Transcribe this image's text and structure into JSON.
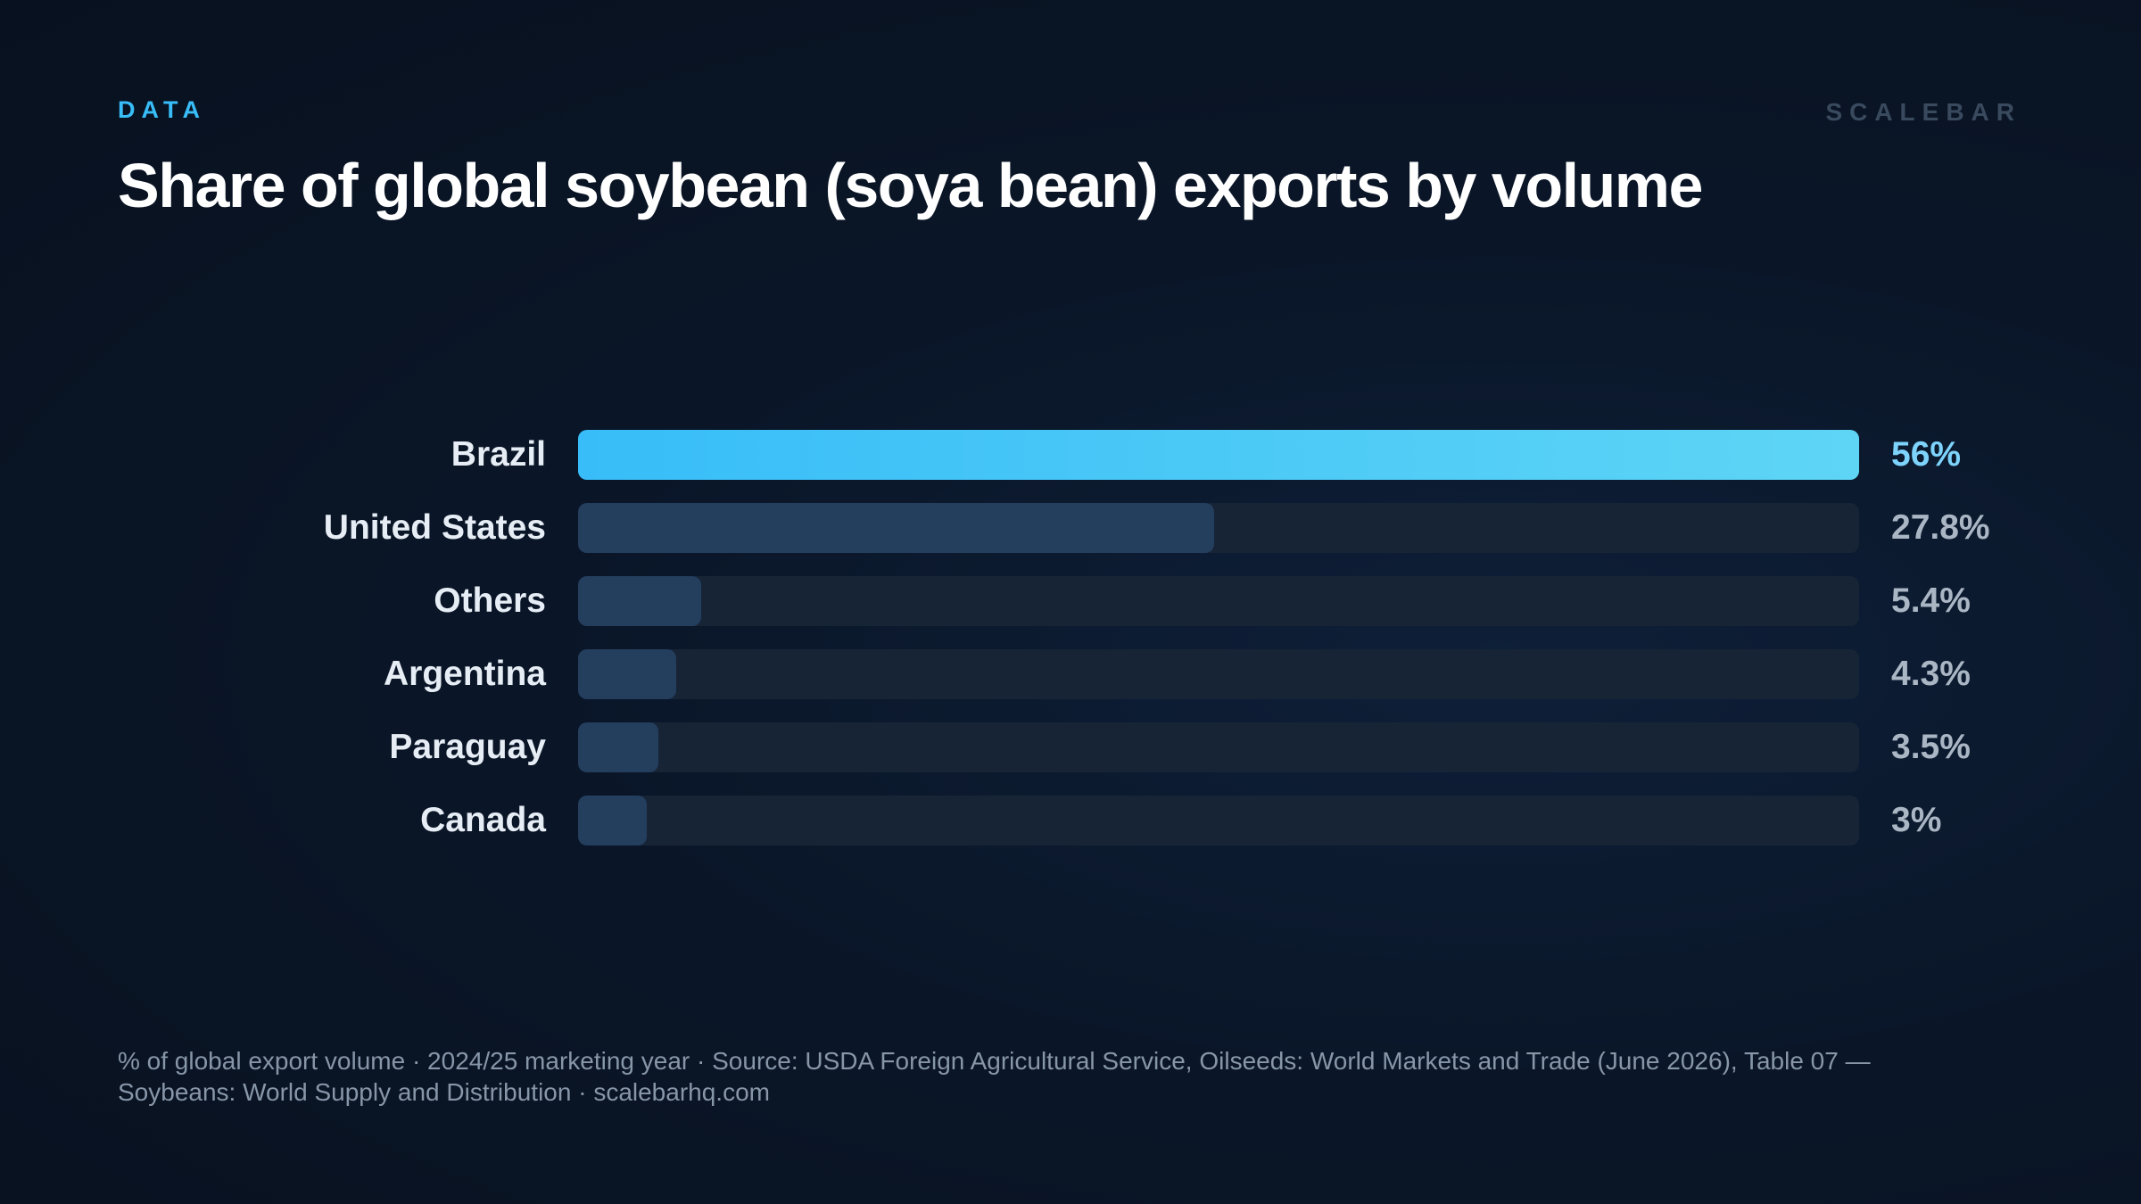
{
  "header": {
    "kicker": "DATA",
    "brand": "SCALEBAR",
    "title": "Share of global soybean (soya bean) exports by volume"
  },
  "chart_data": {
    "type": "bar",
    "orientation": "horizontal",
    "title": "Share of global soybean (soya bean) exports by volume",
    "categories": [
      "Brazil",
      "United States",
      "Others",
      "Argentina",
      "Paraguay",
      "Canada"
    ],
    "values": [
      56,
      27.8,
      5.4,
      4.3,
      3.5,
      3
    ],
    "value_labels": [
      "56%",
      "27.8%",
      "5.4%",
      "4.3%",
      "3.5%",
      "3%"
    ],
    "xlim": [
      0,
      56
    ],
    "grid": false,
    "colors": {
      "highlight": "#38bdf8",
      "highlight_end": "#5ed5f5",
      "bar": "#243e5e",
      "track": "#172436"
    }
  },
  "footer": {
    "text": "% of global export volume · 2024/25 marketing year · Source: USDA Foreign Agricultural Service, Oilseeds: World Markets and Trade (June 2026), Table 07 — Soybeans: World Supply and Distribution · scalebarhq.com"
  }
}
